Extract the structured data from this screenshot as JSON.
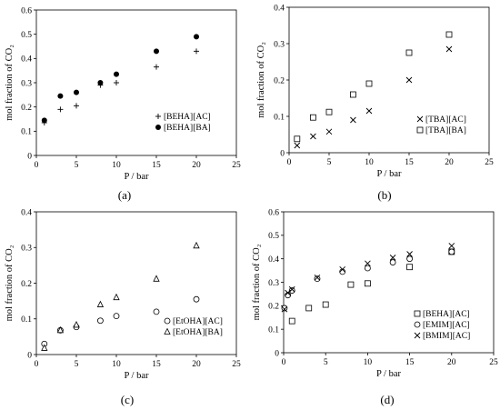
{
  "figure": {
    "panels": [
      {
        "panel_label": "(a)"
      },
      {
        "panel_label": "(b)"
      },
      {
        "panel_label": "(c)"
      },
      {
        "panel_label": "(d)"
      }
    ]
  },
  "chart_data": [
    {
      "type": "scatter",
      "xlabel": "P / bar",
      "ylabel": "mol fraction of CO₂",
      "xlim": [
        0,
        25
      ],
      "ylim": [
        0,
        0.6
      ],
      "xticks": [
        0,
        5,
        10,
        15,
        20,
        25
      ],
      "yticks": [
        0,
        0.1,
        0.2,
        0.3,
        0.4,
        0.5,
        0.6
      ],
      "xtick_labels": [
        "0",
        "5",
        "10",
        "15",
        "20",
        "25"
      ],
      "ytick_labels": [
        "0",
        "0.1",
        "0.2",
        "0.3",
        "0.4",
        "0.5",
        "0.6"
      ],
      "grid": false,
      "legend_position": "bottom-right",
      "series": [
        {
          "name": "[BEHA][AC]",
          "marker": "plus",
          "x": [
            1,
            3,
            5,
            8,
            10,
            15,
            20
          ],
          "y": [
            0.135,
            0.19,
            0.205,
            0.29,
            0.3,
            0.365,
            0.43
          ]
        },
        {
          "name": "[BEHA][BA]",
          "marker": "dot",
          "x": [
            1,
            3,
            5,
            8,
            10,
            15,
            20
          ],
          "y": [
            0.145,
            0.245,
            0.26,
            0.3,
            0.335,
            0.43,
            0.49
          ]
        }
      ]
    },
    {
      "type": "scatter",
      "xlabel": "P / bar",
      "ylabel": "mol fraction of CO₂",
      "xlim": [
        0,
        25
      ],
      "ylim": [
        0,
        0.4
      ],
      "xticks": [
        0,
        5,
        10,
        15,
        20,
        25
      ],
      "yticks": [
        0,
        0.1,
        0.2,
        0.3,
        0.4
      ],
      "xtick_labels": [
        "0",
        "5",
        "10",
        "15",
        "20",
        "25"
      ],
      "ytick_labels": [
        "0",
        "0.1",
        "0.2",
        "0.3",
        "0.4"
      ],
      "grid": false,
      "legend_position": "bottom-right",
      "series": [
        {
          "name": "[TBA][AC]",
          "marker": "x",
          "x": [
            1,
            3,
            5,
            8,
            10,
            15,
            20
          ],
          "y": [
            0.02,
            0.045,
            0.058,
            0.09,
            0.115,
            0.2,
            0.285
          ]
        },
        {
          "name": "[TBA][BA]",
          "marker": "square",
          "x": [
            1,
            3,
            5,
            8,
            10,
            15,
            20
          ],
          "y": [
            0.038,
            0.097,
            0.112,
            0.16,
            0.19,
            0.275,
            0.325
          ]
        }
      ]
    },
    {
      "type": "scatter",
      "xlabel": "P / bar",
      "ylabel": "mol fraction of CO₂",
      "xlim": [
        0,
        25
      ],
      "ylim": [
        0,
        0.4
      ],
      "xticks": [
        0,
        5,
        10,
        15,
        20,
        25
      ],
      "yticks": [
        0,
        0.1,
        0.2,
        0.3,
        0.4
      ],
      "xtick_labels": [
        "0",
        "5",
        "10",
        "15",
        "20",
        "25"
      ],
      "ytick_labels": [
        "0",
        "0.1",
        "0.2",
        "0.3",
        "0.4"
      ],
      "grid": false,
      "legend_position": "bottom-right",
      "series": [
        {
          "name": "[EtOHA][AC]",
          "marker": "circle",
          "x": [
            1,
            3,
            5,
            8,
            10,
            15,
            20
          ],
          "y": [
            0.03,
            0.068,
            0.077,
            0.095,
            0.108,
            0.12,
            0.155
          ]
        },
        {
          "name": "[EtOHA][BA]",
          "marker": "triangle",
          "x": [
            1,
            3,
            5,
            8,
            10,
            15,
            20
          ],
          "y": [
            0.018,
            0.068,
            0.083,
            0.14,
            0.16,
            0.212,
            0.305
          ]
        }
      ]
    },
    {
      "type": "scatter",
      "xlabel": "P / bar",
      "ylabel": "mol fraction of CO₂",
      "xlim": [
        0,
        25
      ],
      "ylim": [
        0,
        0.6
      ],
      "xticks": [
        0,
        5,
        10,
        15,
        20,
        25
      ],
      "yticks": [
        0,
        0.1,
        0.2,
        0.3,
        0.4,
        0.5,
        0.6
      ],
      "xtick_labels": [
        "0",
        "5",
        "10",
        "15",
        "20",
        "25"
      ],
      "ytick_labels": [
        "0",
        "0.1",
        "0.2",
        "0.3",
        "0.4",
        "0.5",
        "0.6"
      ],
      "grid": false,
      "legend_position": "bottom-right",
      "series": [
        {
          "name": "[BEHA][AC]",
          "marker": "square",
          "x": [
            1,
            3,
            5,
            8,
            10,
            15,
            20
          ],
          "y": [
            0.135,
            0.19,
            0.205,
            0.29,
            0.295,
            0.365,
            0.43
          ]
        },
        {
          "name": "[EMIM][AC]",
          "marker": "circle",
          "x": [
            0.1,
            0.5,
            1,
            4,
            7,
            10,
            13,
            15,
            20
          ],
          "y": [
            0.19,
            0.245,
            0.265,
            0.315,
            0.345,
            0.36,
            0.385,
            0.4,
            0.43
          ]
        },
        {
          "name": "[BMIM][AC]",
          "marker": "x",
          "x": [
            0.1,
            0.5,
            1,
            4,
            7,
            10,
            13,
            15,
            20
          ],
          "y": [
            0.185,
            0.255,
            0.27,
            0.32,
            0.355,
            0.38,
            0.405,
            0.42,
            0.455
          ]
        }
      ]
    }
  ]
}
